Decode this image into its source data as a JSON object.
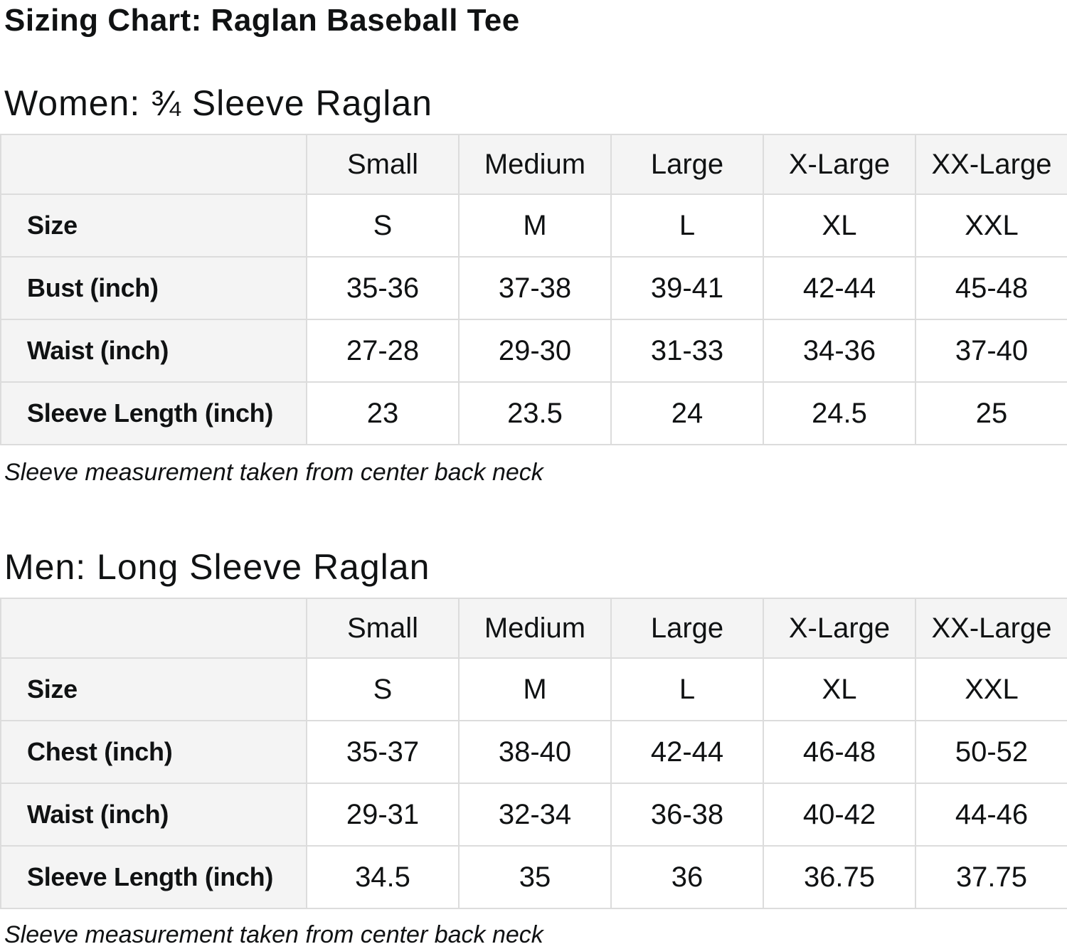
{
  "page_title": "Sizing Chart: Raglan Baseball Tee",
  "colors": {
    "header_cell_bg": "#f4f4f4",
    "border": "#dcdcdc",
    "text": "#101213"
  },
  "sections": [
    {
      "heading": "Women: ¾ Sleeve Raglan",
      "note": "Sleeve measurement taken from center back neck",
      "table": {
        "column_headers": [
          "Small",
          "Medium",
          "Large",
          "X-Large",
          "XX-Large"
        ],
        "rows": [
          {
            "label": "Size",
            "values": [
              "S",
              "M",
              "L",
              "XL",
              "XXL"
            ]
          },
          {
            "label": "Bust (inch)",
            "values": [
              "35-36",
              "37-38",
              "39-41",
              "42-44",
              "45-48"
            ]
          },
          {
            "label": "Waist (inch)",
            "values": [
              "27-28",
              "29-30",
              "31-33",
              "34-36",
              "37-40"
            ]
          },
          {
            "label": "Sleeve Length (inch)",
            "values": [
              "23",
              "23.5",
              "24",
              "24.5",
              "25"
            ]
          }
        ]
      }
    },
    {
      "heading": "Men: Long Sleeve Raglan",
      "note": "Sleeve measurement taken from center back neck",
      "table": {
        "column_headers": [
          "Small",
          "Medium",
          "Large",
          "X-Large",
          "XX-Large"
        ],
        "rows": [
          {
            "label": "Size",
            "values": [
              "S",
              "M",
              "L",
              "XL",
              "XXL"
            ]
          },
          {
            "label": "Chest (inch)",
            "values": [
              "35-37",
              "38-40",
              "42-44",
              "46-48",
              "50-52"
            ]
          },
          {
            "label": "Waist (inch)",
            "values": [
              "29-31",
              "32-34",
              "36-38",
              "40-42",
              "44-46"
            ]
          },
          {
            "label": "Sleeve Length (inch)",
            "values": [
              "34.5",
              "35",
              "36",
              "36.75",
              "37.75"
            ]
          }
        ]
      }
    }
  ]
}
